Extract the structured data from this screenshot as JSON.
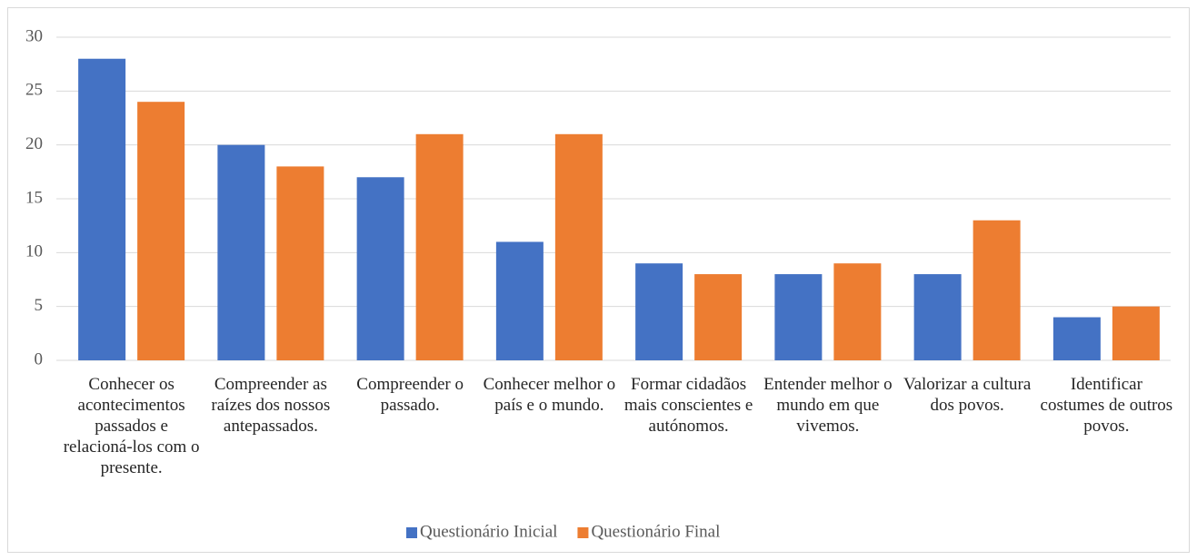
{
  "chart_data": {
    "type": "bar",
    "categories": [
      "Conhecer os acontecimentos passados e relacioná-los com o presente.",
      "Compreender as raízes dos nossos antepassados.",
      "Compreender o passado.",
      "Conhecer melhor o país e o mundo.",
      "Formar cidadãos mais conscientes e autónomos.",
      "Entender melhor o mundo em que vivemos.",
      "Valorizar a cultura dos povos.",
      "Identificar costumes de outros povos."
    ],
    "series": [
      {
        "name": "Questionário Inicial",
        "color": "#4472c4",
        "values": [
          28,
          20,
          17,
          11,
          9,
          8,
          8,
          4
        ]
      },
      {
        "name": "Questionário Final",
        "color": "#ed7d31",
        "values": [
          24,
          18,
          21,
          21,
          8,
          9,
          13,
          5
        ]
      }
    ],
    "ylim": [
      0,
      30
    ],
    "yticks": [
      0,
      5,
      10,
      15,
      20,
      25,
      30
    ],
    "grid": true,
    "legend": "bottom"
  }
}
